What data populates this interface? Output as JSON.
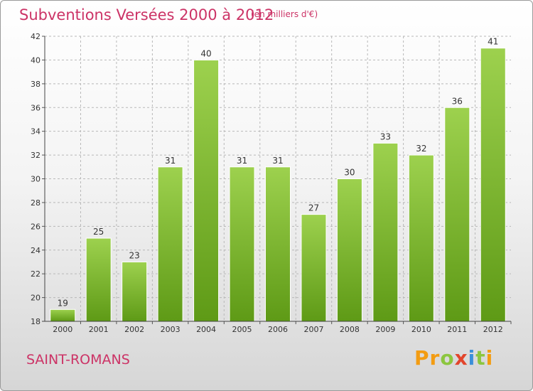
{
  "header": {
    "title": "Subventions Versées 2000 à 2012",
    "subtitle": "(en milliers d'€)"
  },
  "footer": {
    "commune": "SAINT-ROMANS",
    "logo_text": "Proxiti"
  },
  "colors": {
    "title": "#cc3366",
    "bar_top": "#9dd14e",
    "bar_bottom": "#5e9a16",
    "grid": "#b8b8b8"
  },
  "chart_data": {
    "type": "bar",
    "categories": [
      "2000",
      "2001",
      "2002",
      "2003",
      "2004",
      "2005",
      "2006",
      "2007",
      "2008",
      "2009",
      "2010",
      "2011",
      "2012"
    ],
    "values": [
      19,
      25,
      23,
      31,
      40,
      31,
      31,
      27,
      30,
      33,
      32,
      36,
      41
    ],
    "title": "Subventions Versées 2000 à 2012",
    "subtitle": "(en milliers d'€)",
    "ylim": [
      18,
      42
    ],
    "yticks": [
      18,
      20,
      22,
      24,
      26,
      28,
      30,
      32,
      34,
      36,
      38,
      40,
      42
    ],
    "grid": true,
    "data_labels": true
  }
}
